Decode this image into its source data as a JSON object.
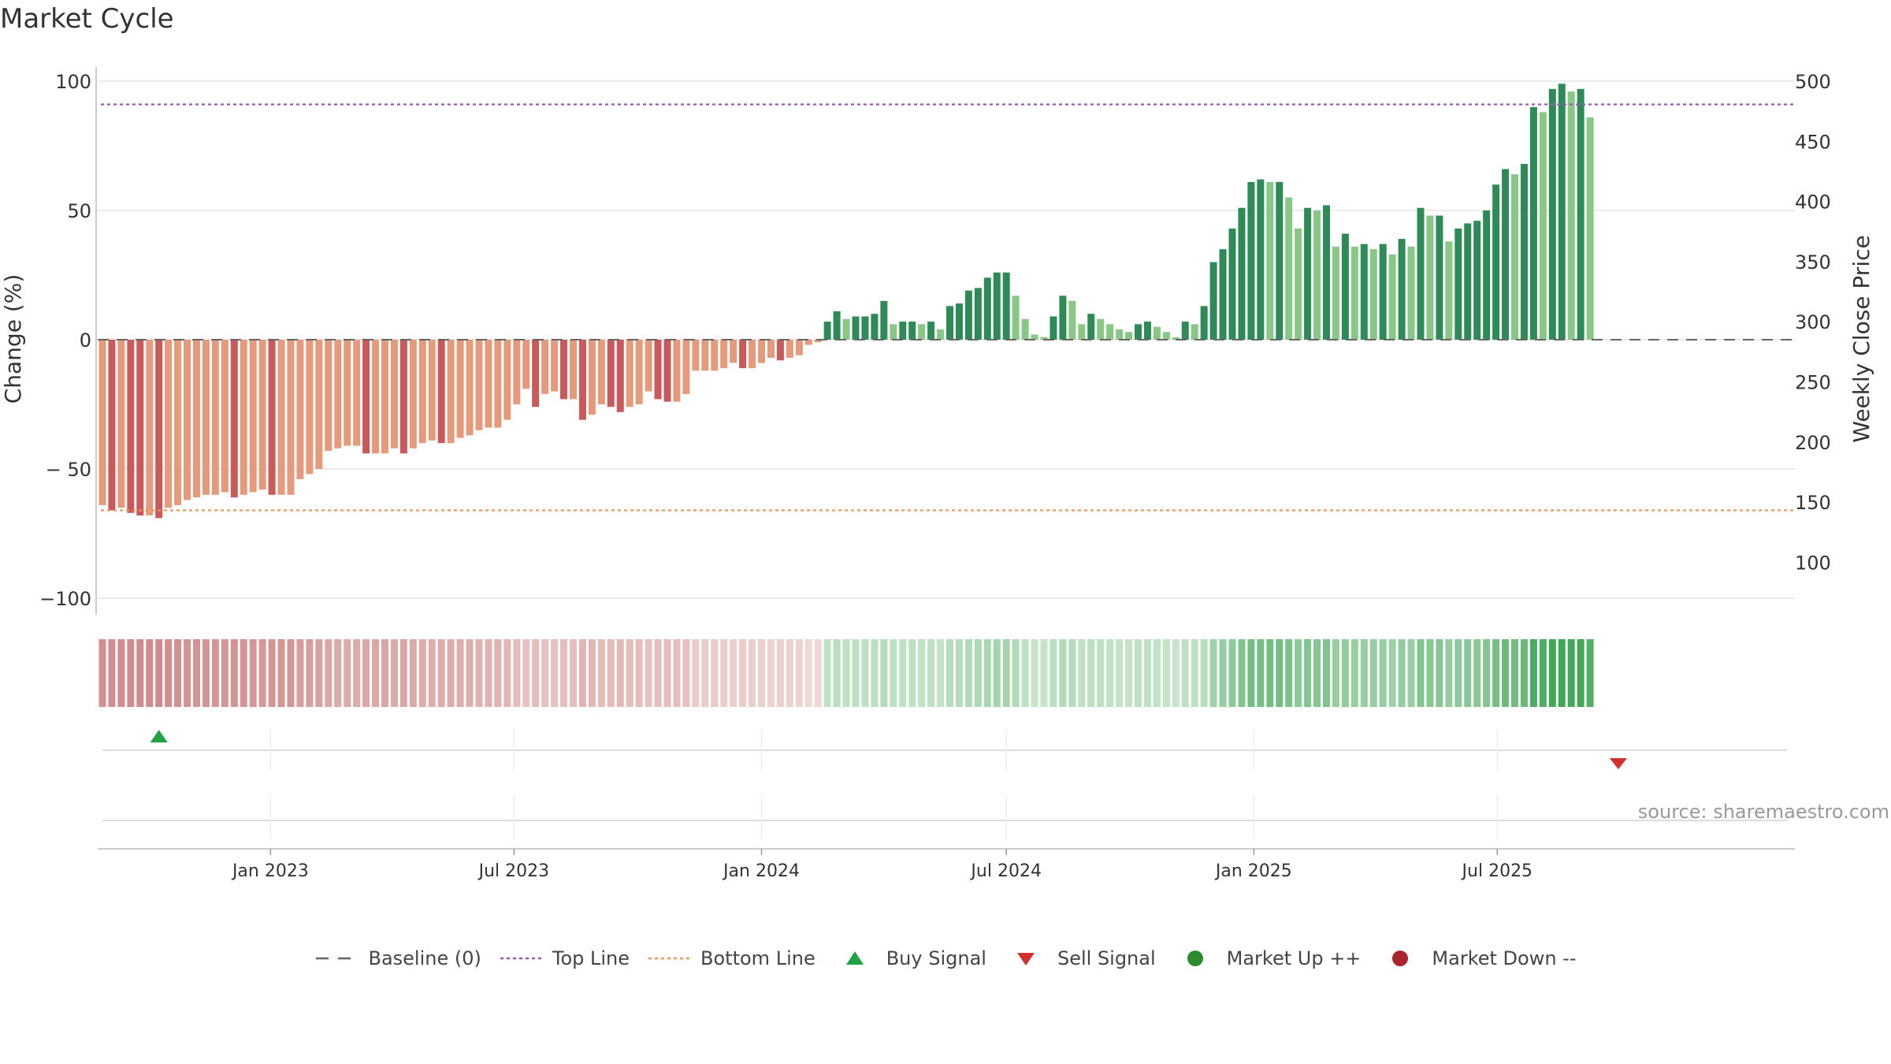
{
  "chart_data": {
    "type": "bar",
    "title": "Market Cycle",
    "ylabel_left": "Change (%)",
    "ylabel_right": "Weekly Close Price",
    "ylim_left": [
      -105,
      100
    ],
    "yticks_left": [
      100,
      50,
      0,
      -50,
      -100
    ],
    "ytick_labels_left": [
      "100",
      "50",
      "0",
      "− 50",
      "−100"
    ],
    "yticks_right": [
      500,
      450,
      400,
      350,
      300,
      250,
      200,
      150,
      100
    ],
    "reference_lines": {
      "top_line": 91,
      "bottom_line": -66,
      "baseline": 0
    },
    "x_start": "2022-08-29",
    "x_interval": "weekly",
    "xtick_labels": [
      {
        "date": "2023-01-01",
        "label": "Jan 2023"
      },
      {
        "date": "2023-07-01",
        "label": "Jul 2023"
      },
      {
        "date": "2024-01-01",
        "label": "Jan 2024"
      },
      {
        "date": "2024-07-01",
        "label": "Jul 2024"
      },
      {
        "date": "2025-01-01",
        "label": "Jan 2025"
      },
      {
        "date": "2025-07-01",
        "label": "Jul 2025"
      }
    ],
    "values": [
      -64,
      -66,
      -65,
      -67,
      -68,
      -68,
      -69,
      -65,
      -64,
      -62,
      -61,
      -60,
      -60,
      -59,
      -61,
      -60,
      -59,
      -58,
      -60,
      -60,
      -60,
      -54,
      -52,
      -50,
      -43,
      -42,
      -41,
      -41,
      -44,
      -44,
      -44,
      -42,
      -44,
      -42,
      -40,
      -39,
      -40,
      -40,
      -38,
      -37,
      -35,
      -34,
      -34,
      -31,
      -25,
      -19,
      -26,
      -21,
      -20,
      -23,
      -23,
      -31,
      -29,
      -25,
      -26,
      -28,
      -26,
      -25,
      -20,
      -23,
      -24,
      -24,
      -21,
      -12,
      -12,
      -12,
      -11,
      -9,
      -11,
      -11,
      -9,
      -7,
      -8,
      -7,
      -6,
      -2,
      -1,
      7,
      11,
      8,
      9,
      9,
      10,
      15,
      6,
      7,
      7,
      6,
      7,
      4,
      13,
      14,
      19,
      20,
      24,
      26,
      26,
      17,
      8,
      2,
      1,
      9,
      17,
      15,
      6,
      10,
      8,
      6,
      4,
      3,
      6,
      7,
      5,
      3,
      1,
      7,
      6,
      13,
      30,
      35,
      43,
      51,
      61,
      62,
      61,
      61,
      55,
      43,
      51,
      50,
      52,
      36,
      41,
      36,
      37,
      35,
      37,
      33,
      39,
      36,
      51,
      48,
      48,
      38,
      43,
      45,
      46,
      50,
      60,
      66,
      64,
      68,
      90,
      88,
      97,
      99,
      96,
      97,
      86
    ],
    "signals": [
      {
        "type": "Buy Signal",
        "date": "2022-10-10",
        "color": "#22a147"
      },
      {
        "type": "Sell Signal",
        "date": "2025-09-29",
        "color": "#d0312d"
      }
    ],
    "colors": {
      "down_dark": "#c9595a",
      "down_light": "#e59a7c",
      "up_dark": "#2e8b57",
      "up_light": "#88c786",
      "top_line": "#9b59b6",
      "bottom_line": "#e8965a",
      "baseline": "#666666",
      "strip_neg_strong": "#cf8a8a",
      "strip_neg_weak": "#f0d9d6",
      "strip_pos_weak": "#c8e6cb",
      "strip_pos_strong": "#3fa557"
    }
  },
  "legend": [
    {
      "label": "Baseline (0)",
      "kind": "dash",
      "color": "#666666"
    },
    {
      "label": "Top Line",
      "kind": "dot",
      "color": "#9b59b6"
    },
    {
      "label": "Bottom Line",
      "kind": "dot",
      "color": "#e8965a"
    },
    {
      "label": "Buy Signal",
      "kind": "tri-up",
      "color": "#22a147"
    },
    {
      "label": "Sell Signal",
      "kind": "tri-down",
      "color": "#d0312d"
    },
    {
      "label": "Market Up ++",
      "kind": "circle",
      "color": "#2e8b2e"
    },
    {
      "label": "Market Down --",
      "kind": "circle",
      "color": "#a8262b"
    }
  ],
  "source_note": "source: sharemaestro.com"
}
